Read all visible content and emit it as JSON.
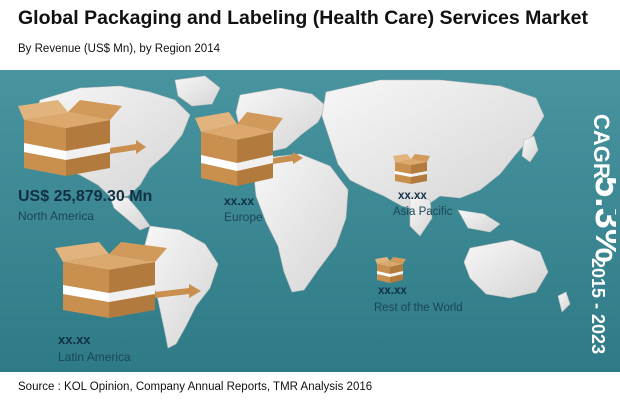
{
  "header": {
    "title": "Global Packaging and Labeling (Health Care) Services Market",
    "subtitle": "By Revenue (US$ Mn), by Region 2014"
  },
  "regions": [
    {
      "name": "North America",
      "value": "US$ 25,879.30 Mn"
    },
    {
      "name": "Europe",
      "value": "xx.xx"
    },
    {
      "name": "Asia Pacific",
      "value": "xx.xx"
    },
    {
      "name": "Rest of the World",
      "value": "xx.xx"
    },
    {
      "name": "Latin America",
      "value": "xx.xx"
    }
  ],
  "cagr": {
    "label": "CAGR",
    "value": "5.3%",
    "period": "2015 - 2023"
  },
  "source": "Source : KOL Opinion, Company Annual Reports, TMR Analysis 2016",
  "colors": {
    "background": "#2f7f8c",
    "map": "#ececec",
    "box": "#c98f4f",
    "band": "#ffffff"
  }
}
